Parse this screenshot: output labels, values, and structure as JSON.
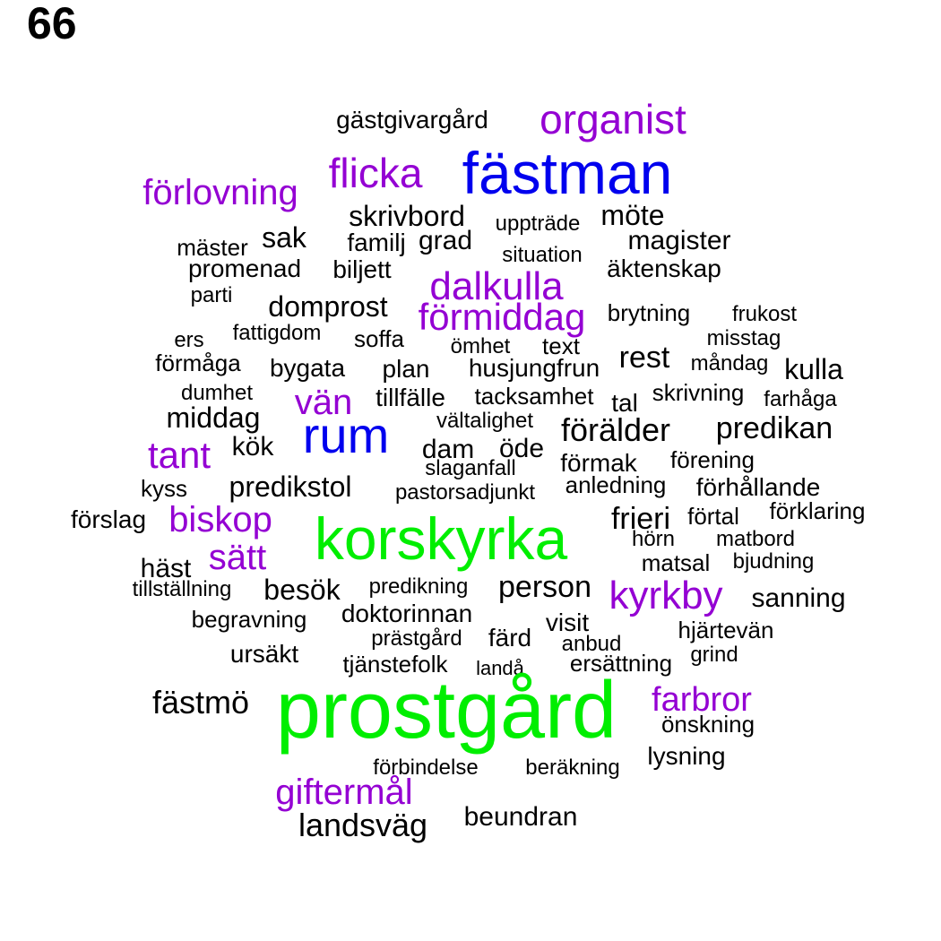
{
  "page_number": "66",
  "colors": {
    "large": "#00ee00",
    "medium_blue": "#0000ee",
    "purple": "#9400d3",
    "default": "#000000"
  },
  "words": [
    {
      "text": "gästgivargård",
      "color": "#000000"
    },
    {
      "text": "organist",
      "color": "#9400d3"
    },
    {
      "text": "fästman",
      "color": "#0000ee"
    },
    {
      "text": "flicka",
      "color": "#9400d3"
    },
    {
      "text": "förlovning",
      "color": "#9400d3"
    },
    {
      "text": "skrivbord",
      "color": "#000000"
    },
    {
      "text": "uppträde",
      "color": "#000000"
    },
    {
      "text": "möte",
      "color": "#000000"
    },
    {
      "text": "sak",
      "color": "#000000"
    },
    {
      "text": "familj",
      "color": "#000000"
    },
    {
      "text": "grad",
      "color": "#000000"
    },
    {
      "text": "magister",
      "color": "#000000"
    },
    {
      "text": "mäster",
      "color": "#000000"
    },
    {
      "text": "situation",
      "color": "#000000"
    },
    {
      "text": "promenad",
      "color": "#000000"
    },
    {
      "text": "biljett",
      "color": "#000000"
    },
    {
      "text": "äktenskap",
      "color": "#000000"
    },
    {
      "text": "dalkulla",
      "color": "#9400d3"
    },
    {
      "text": "parti",
      "color": "#000000"
    },
    {
      "text": "domprost",
      "color": "#000000"
    },
    {
      "text": "förmiddag",
      "color": "#9400d3"
    },
    {
      "text": "brytning",
      "color": "#000000"
    },
    {
      "text": "frukost",
      "color": "#000000"
    },
    {
      "text": "fattigdom",
      "color": "#000000"
    },
    {
      "text": "ers",
      "color": "#000000"
    },
    {
      "text": "soffa",
      "color": "#000000"
    },
    {
      "text": "ömhet",
      "color": "#000000"
    },
    {
      "text": "text",
      "color": "#000000"
    },
    {
      "text": "misstag",
      "color": "#000000"
    },
    {
      "text": "förmåga",
      "color": "#000000"
    },
    {
      "text": "bygata",
      "color": "#000000"
    },
    {
      "text": "plan",
      "color": "#000000"
    },
    {
      "text": "husjungfrun",
      "color": "#000000"
    },
    {
      "text": "rest",
      "color": "#000000"
    },
    {
      "text": "måndag",
      "color": "#000000"
    },
    {
      "text": "kulla",
      "color": "#000000"
    },
    {
      "text": "dumhet",
      "color": "#000000"
    },
    {
      "text": "vän",
      "color": "#9400d3"
    },
    {
      "text": "tillfälle",
      "color": "#000000"
    },
    {
      "text": "tacksamhet",
      "color": "#000000"
    },
    {
      "text": "skrivning",
      "color": "#000000"
    },
    {
      "text": "tal",
      "color": "#000000"
    },
    {
      "text": "farhåga",
      "color": "#000000"
    },
    {
      "text": "middag",
      "color": "#000000"
    },
    {
      "text": "rum",
      "color": "#0000ee"
    },
    {
      "text": "vältalighet",
      "color": "#000000"
    },
    {
      "text": "förälder",
      "color": "#000000"
    },
    {
      "text": "predikan",
      "color": "#000000"
    },
    {
      "text": "tant",
      "color": "#9400d3"
    },
    {
      "text": "kök",
      "color": "#000000"
    },
    {
      "text": "dam",
      "color": "#000000"
    },
    {
      "text": "öde",
      "color": "#000000"
    },
    {
      "text": "slaganfall",
      "color": "#000000"
    },
    {
      "text": "förmak",
      "color": "#000000"
    },
    {
      "text": "förening",
      "color": "#000000"
    },
    {
      "text": "kyss",
      "color": "#000000"
    },
    {
      "text": "predikstol",
      "color": "#000000"
    },
    {
      "text": "pastorsadjunkt",
      "color": "#000000"
    },
    {
      "text": "anledning",
      "color": "#000000"
    },
    {
      "text": "förhållande",
      "color": "#000000"
    },
    {
      "text": "förslag",
      "color": "#000000"
    },
    {
      "text": "biskop",
      "color": "#9400d3"
    },
    {
      "text": "korskyrka",
      "color": "#00ee00"
    },
    {
      "text": "frieri",
      "color": "#000000"
    },
    {
      "text": "förtal",
      "color": "#000000"
    },
    {
      "text": "förklaring",
      "color": "#000000"
    },
    {
      "text": "sätt",
      "color": "#9400d3"
    },
    {
      "text": "hörn",
      "color": "#000000"
    },
    {
      "text": "matbord",
      "color": "#000000"
    },
    {
      "text": "häst",
      "color": "#000000"
    },
    {
      "text": "matsal",
      "color": "#000000"
    },
    {
      "text": "bjudning",
      "color": "#000000"
    },
    {
      "text": "tillställning",
      "color": "#000000"
    },
    {
      "text": "besök",
      "color": "#000000"
    },
    {
      "text": "predikning",
      "color": "#000000"
    },
    {
      "text": "person",
      "color": "#000000"
    },
    {
      "text": "kyrkby",
      "color": "#9400d3"
    },
    {
      "text": "sanning",
      "color": "#000000"
    },
    {
      "text": "begravning",
      "color": "#000000"
    },
    {
      "text": "doktorinnan",
      "color": "#000000"
    },
    {
      "text": "visit",
      "color": "#000000"
    },
    {
      "text": "hjärtevän",
      "color": "#000000"
    },
    {
      "text": "prästgård",
      "color": "#000000"
    },
    {
      "text": "färd",
      "color": "#000000"
    },
    {
      "text": "anbud",
      "color": "#000000"
    },
    {
      "text": "ursäkt",
      "color": "#000000"
    },
    {
      "text": "tjänstefolk",
      "color": "#000000"
    },
    {
      "text": "landå",
      "color": "#000000"
    },
    {
      "text": "ersättning",
      "color": "#000000"
    },
    {
      "text": "grind",
      "color": "#000000"
    },
    {
      "text": "fästmö",
      "color": "#000000"
    },
    {
      "text": "prostgård",
      "color": "#00ee00"
    },
    {
      "text": "farbror",
      "color": "#9400d3"
    },
    {
      "text": "önskning",
      "color": "#000000"
    },
    {
      "text": "lysning",
      "color": "#000000"
    },
    {
      "text": "förbindelse",
      "color": "#000000"
    },
    {
      "text": "beräkning",
      "color": "#000000"
    },
    {
      "text": "giftermål",
      "color": "#9400d3"
    },
    {
      "text": "landsväg",
      "color": "#000000"
    },
    {
      "text": "beundran",
      "color": "#000000"
    }
  ]
}
